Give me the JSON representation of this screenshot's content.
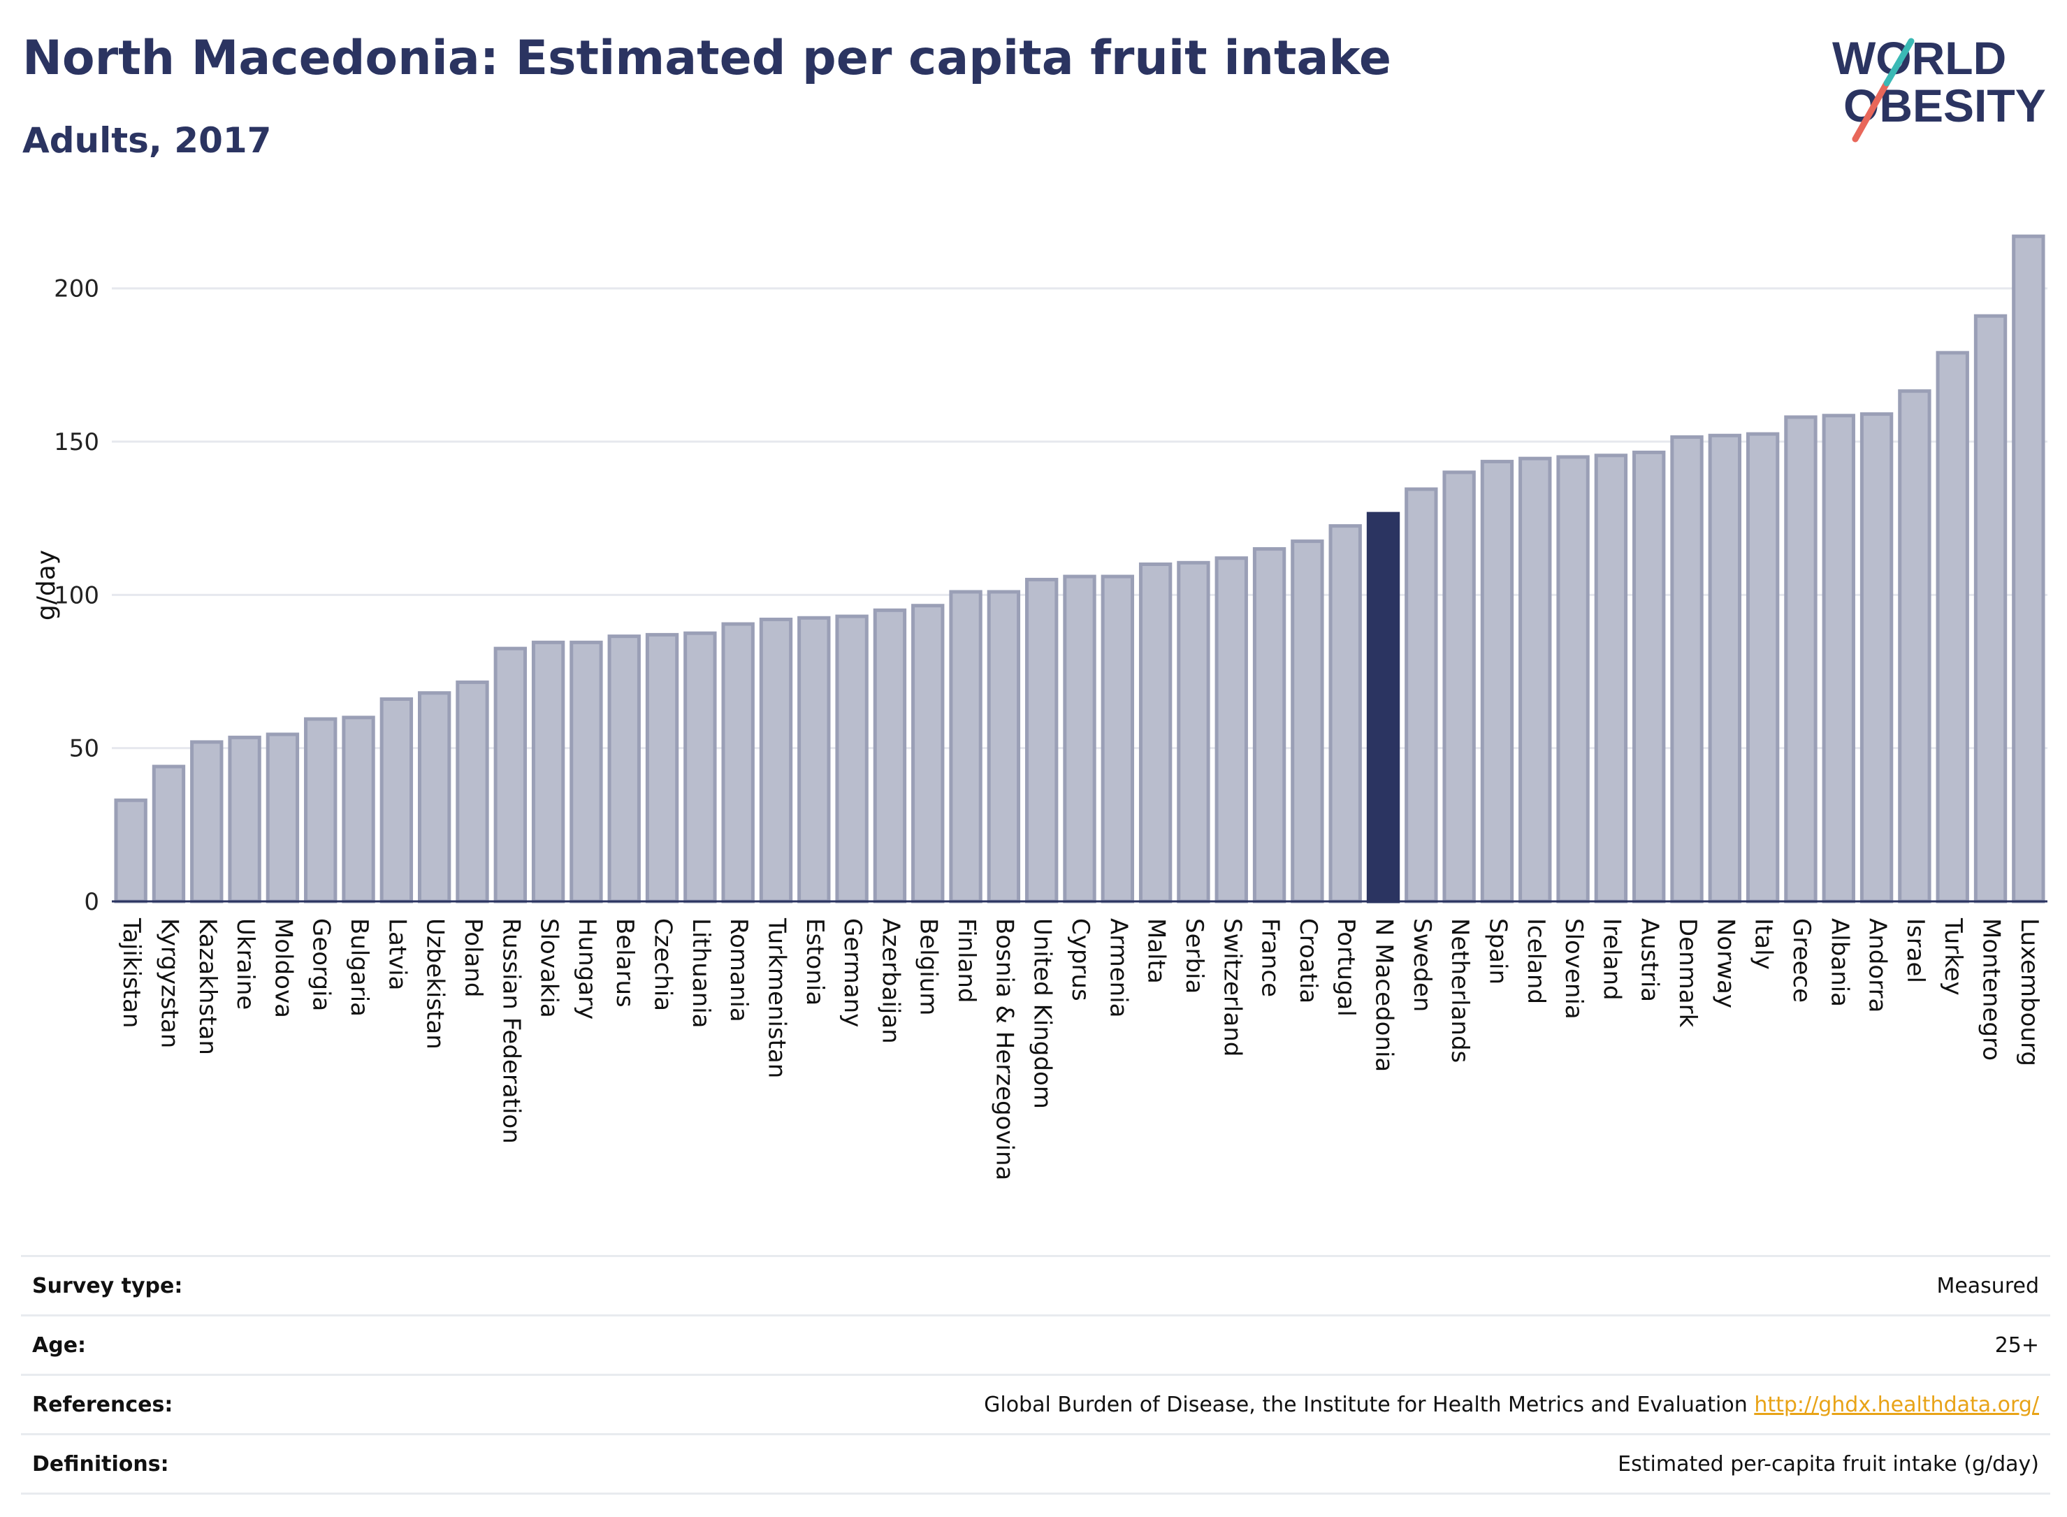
{
  "header": {
    "title": "North Macedonia: Estimated per capita fruit intake",
    "subtitle": "Adults, 2017"
  },
  "logo": {
    "line1": "WORLD",
    "line2": "OBESITY"
  },
  "colors": {
    "bar": "#b9bdcd",
    "bar_stroke": "#9a9fb6",
    "highlight": "#2b3461",
    "grid": "#e6e8ee",
    "logo_text": "#2b3461",
    "logo_teal": "#3bb9b5",
    "logo_coral": "#e8675a"
  },
  "chart_data": {
    "type": "bar",
    "ylabel": "g/day",
    "ylim": [
      0,
      220
    ],
    "yticks": [
      0,
      50,
      100,
      150,
      200
    ],
    "grid": true,
    "highlight": "N Macedonia",
    "categories": [
      "Tajikistan",
      "Kyrgyzstan",
      "Kazakhstan",
      "Ukraine",
      "Moldova",
      "Georgia",
      "Bulgaria",
      "Latvia",
      "Uzbekistan",
      "Poland",
      "Russian Federation",
      "Slovakia",
      "Hungary",
      "Belarus",
      "Czechia",
      "Lithuania",
      "Romania",
      "Turkmenistan",
      "Estonia",
      "Germany",
      "Azerbaijan",
      "Belgium",
      "Finland",
      "Bosnia & Herzegovina",
      "United Kingdom",
      "Cyprus",
      "Armenia",
      "Malta",
      "Serbia",
      "Switzerland",
      "France",
      "Croatia",
      "Portugal",
      "N Macedonia",
      "Sweden",
      "Netherlands",
      "Spain",
      "Iceland",
      "Slovenia",
      "Ireland",
      "Austria",
      "Denmark",
      "Norway",
      "Italy",
      "Greece",
      "Albania",
      "Andorra",
      "Israel",
      "Turkey",
      "Montenegro",
      "Luxembourg"
    ],
    "values": [
      33,
      44,
      52,
      53.5,
      54.5,
      59.5,
      60,
      66,
      68,
      71.5,
      82.5,
      84.5,
      84.5,
      86.5,
      87,
      87.5,
      90.5,
      92,
      92.5,
      93,
      95,
      96.5,
      101,
      101,
      105,
      106,
      106,
      110,
      110.5,
      112,
      115,
      117.5,
      122.5,
      126.5,
      134.5,
      140,
      143.5,
      144.5,
      145,
      145.5,
      146.5,
      151.5,
      152,
      152.5,
      158,
      158.5,
      159,
      166.5,
      179,
      191,
      217
    ]
  },
  "meta": {
    "survey_label": "Survey type:",
    "survey_value": "Measured",
    "age_label": "Age:",
    "age_value": "25+",
    "ref_label": "References:",
    "ref_value": "Global Burden of Disease, the Institute for Health Metrics and Evaluation",
    "ref_link": "http://ghdx.healthdata.org/",
    "def_label": "Definitions:",
    "def_value": "Estimated per-capita fruit intake (g/day)"
  }
}
